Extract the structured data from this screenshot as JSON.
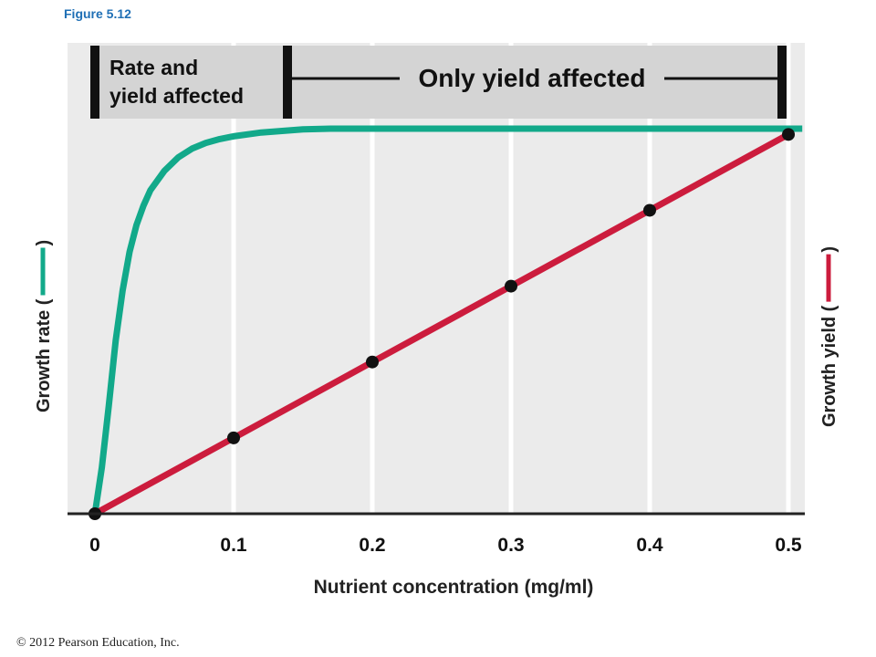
{
  "figure_label": "Figure 5.12",
  "copyright": "© 2012 Pearson Education, Inc.",
  "colors": {
    "rate": "#12a98a",
    "yield": "#cc1c3d",
    "plot_bg": "#ebebeb",
    "band_bg": "#d4d4d4",
    "gridline": "#ffffff"
  },
  "bands": {
    "rate_and_yield": {
      "line1": "Rate and",
      "line2": "yield affected",
      "x_range": [
        0,
        0.135
      ]
    },
    "only_yield": {
      "label": "Only yield affected",
      "x_range": [
        0.135,
        0.5
      ]
    }
  },
  "chart_data": {
    "type": "line",
    "xlabel": "Nutrient concentration (mg/ml)",
    "ylabel_left": "Growth rate (",
    "ylabel_left_close": ")",
    "ylabel_right": "Growth yield (",
    "ylabel_right_close": ")",
    "x_ticks": [
      "0",
      "0.1",
      "0.2",
      "0.3",
      "0.4",
      "0.5"
    ],
    "x_tick_values": [
      0,
      0.1,
      0.2,
      0.3,
      0.4,
      0.5
    ],
    "xlim": [
      -0.02,
      0.51
    ],
    "ylim": [
      0,
      1
    ],
    "grid": "vertical",
    "series": [
      {
        "key": "growth_rate",
        "x": [
          0,
          0.005,
          0.01,
          0.015,
          0.02,
          0.025,
          0.03,
          0.035,
          0.04,
          0.05,
          0.06,
          0.07,
          0.08,
          0.09,
          0.1,
          0.12,
          0.15,
          0.17,
          0.2,
          0.3,
          0.4,
          0.5,
          0.51
        ],
        "y": [
          0,
          0.12,
          0.28,
          0.45,
          0.58,
          0.68,
          0.75,
          0.8,
          0.84,
          0.89,
          0.925,
          0.948,
          0.963,
          0.973,
          0.98,
          0.99,
          0.998,
          1,
          1,
          1,
          1,
          1,
          1
        ]
      },
      {
        "key": "growth_yield",
        "x": [
          0,
          0.1,
          0.2,
          0.3,
          0.4,
          0.5
        ],
        "y": [
          0,
          0.197,
          0.394,
          0.591,
          0.788,
          0.985
        ],
        "points": true
      }
    ]
  }
}
